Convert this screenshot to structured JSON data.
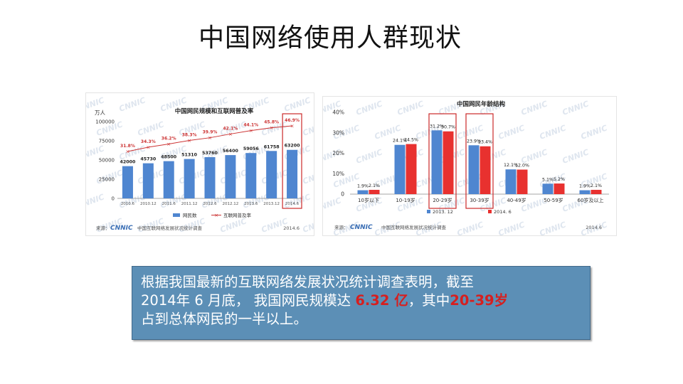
{
  "page": {
    "title": "中国网络使用人群现状"
  },
  "summary": {
    "line1": "根据我国最新的互联网络发展状况统计调查表明，截至",
    "line2_a": "2014年 6 月底，  我国网民规模达 ",
    "line2_hl1": "6.32 亿",
    "line2_b": "，其中",
    "line2_hl2": "20-39岁",
    "line3": "占到总体网民的一半以上。"
  },
  "colors": {
    "bar_blue": "#4f86d0",
    "bar_red": "#e8312f",
    "line_red": "#cc3333",
    "highlight_box": "#cc2a2a",
    "textbox_bg": "#5c8fb6"
  },
  "chart_data": [
    {
      "type": "bar",
      "title": "中国网民规模和互联网普及率",
      "y_unit": "万人",
      "ylim": [
        0,
        100000
      ],
      "yticks": [
        "0",
        "25000",
        "50000",
        "75000",
        "100000"
      ],
      "categories": [
        "2010.6",
        "2010.12",
        "2011.6",
        "2011.12",
        "2012.6",
        "2012.12",
        "2013.6",
        "2013.12",
        "2014.6"
      ],
      "series": [
        {
          "name": "网民数",
          "type": "bar",
          "values": [
            42000,
            45730,
            48500,
            51310,
            53760,
            56400,
            59056,
            61758,
            63200
          ],
          "labels": [
            "42000",
            "45730",
            "48500",
            "51310",
            "53760",
            "56400",
            "59056",
            "61758",
            "63200"
          ]
        },
        {
          "name": "互联网普及率",
          "type": "line",
          "values": [
            31.8,
            34.3,
            36.2,
            38.3,
            39.9,
            42.1,
            44.1,
            45.8,
            46.9
          ],
          "labels": [
            "31.8%",
            "34.3%",
            "36.2%",
            "38.3%",
            "39.9%",
            "42.1%",
            "44.1%",
            "45.8%",
            "46.9%"
          ]
        }
      ],
      "highlighted_category": "2014.6",
      "source_label": "来源：",
      "source_logo": "CNNIC",
      "source_text": "中国互联网络发展状况统计调查",
      "source_date": "2014.6",
      "watermark": "CNNIC",
      "legend_position": "bottom"
    },
    {
      "type": "bar",
      "title": "中国网民年龄结构",
      "ylim": [
        0,
        40
      ],
      "yticks": [
        "0",
        "10%",
        "20%",
        "30%",
        "40%"
      ],
      "categories": [
        "10岁以下",
        "10-19岁",
        "20-29岁",
        "30-39岁",
        "40-49岁",
        "50-59岁",
        "60岁及以上"
      ],
      "series": [
        {
          "name": "2013. 12",
          "values": [
            1.9,
            24.1,
            31.2,
            23.9,
            12.1,
            5.1,
            1.9
          ],
          "labels": [
            "1.9%",
            "24.1%",
            "31.2%",
            "23.9%",
            "12.1%",
            "5.1%",
            "1.9%"
          ]
        },
        {
          "name": "2014. 6",
          "values": [
            2.1,
            24.5,
            30.7,
            23.4,
            12.0,
            5.2,
            2.1
          ],
          "labels": [
            "2.1%",
            "24.5%",
            "30.7%",
            "23.4%",
            "12.0%",
            "5.2%",
            "2.1%"
          ]
        }
      ],
      "highlighted_categories": [
        "20-29岁",
        "30-39岁"
      ],
      "source_label": "来源：",
      "source_logo": "CNNIC",
      "source_text": "中国互联网络发展状况统计调查",
      "source_date": "2014.6",
      "watermark": "CNNIC",
      "legend_position": "bottom"
    }
  ]
}
